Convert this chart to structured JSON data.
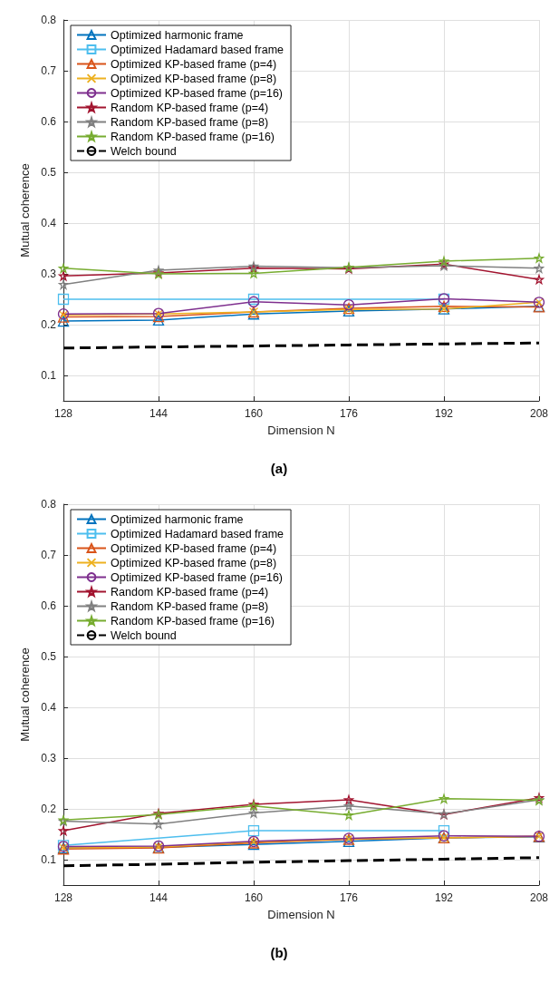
{
  "chart_data": [
    {
      "type": "line",
      "xlabel": "Dimension N",
      "ylabel": "Mutual coherence",
      "annotations": [
        "(a)"
      ],
      "x": [
        128,
        144,
        160,
        176,
        192,
        208
      ],
      "xlim": [
        128,
        208
      ],
      "xticks": [
        128,
        144,
        160,
        176,
        192,
        208
      ],
      "ylim": [
        0.05,
        0.8
      ],
      "yticks": [
        0.1,
        0.2,
        0.3,
        0.4,
        0.5,
        0.6,
        0.7,
        0.8
      ],
      "grid": true,
      "legend": "top left",
      "series": [
        {
          "name": "Optimized harmonic frame",
          "color": "#0072bd",
          "marker": "triangle",
          "values": [
            0.207,
            0.209,
            0.221,
            0.227,
            0.231,
            0.236
          ]
        },
        {
          "name": "Optimized Hadamard based frame",
          "color": "#4dbeee",
          "marker": "square",
          "x": [
            128,
            160,
            192
          ],
          "values": [
            0.25,
            0.25,
            0.25
          ]
        },
        {
          "name": "Optimized KP-based frame (p=4)",
          "color": "#d95319",
          "marker": "triangle",
          "values": [
            0.215,
            0.216,
            0.225,
            0.232,
            0.236,
            0.235
          ]
        },
        {
          "name": "Optimized KP-based frame (p=8)",
          "color": "#edb120",
          "marker": "cross",
          "values": [
            0.219,
            0.221,
            0.225,
            0.23,
            0.231,
            0.244
          ]
        },
        {
          "name": "Optimized KP-based frame (p=16)",
          "color": "#7e2f8e",
          "marker": "circle",
          "values": [
            0.221,
            0.222,
            0.245,
            0.239,
            0.251,
            0.244
          ]
        },
        {
          "name": "Random KP-based frame (p=4)",
          "color": "#a2142f",
          "marker": "star",
          "values": [
            0.296,
            0.302,
            0.311,
            0.31,
            0.319,
            0.289
          ]
        },
        {
          "name": "Random KP-based frame (p=8)",
          "color": "#808080",
          "marker": "star",
          "values": [
            0.279,
            0.307,
            0.315,
            0.312,
            0.316,
            0.311
          ]
        },
        {
          "name": "Random KP-based frame (p=16)",
          "color": "#77ac30",
          "marker": "star",
          "values": [
            0.311,
            0.3,
            0.301,
            0.313,
            0.325,
            0.331
          ]
        },
        {
          "name": "Welch bound",
          "color": "#000000",
          "marker": "none",
          "line_style": "dashed",
          "values": [
            0.154,
            0.156,
            0.158,
            0.16,
            0.162,
            0.164
          ]
        }
      ]
    },
    {
      "type": "line",
      "xlabel": "Dimension N",
      "ylabel": "Mutual coherence",
      "annotations": [
        "(b)"
      ],
      "x": [
        128,
        144,
        160,
        176,
        192,
        208
      ],
      "xlim": [
        128,
        208
      ],
      "xticks": [
        128,
        144,
        160,
        176,
        192,
        208
      ],
      "ylim": [
        0.05,
        0.8
      ],
      "yticks": [
        0.1,
        0.2,
        0.3,
        0.4,
        0.5,
        0.6,
        0.7,
        0.8
      ],
      "grid": true,
      "legend": "top left",
      "series": [
        {
          "name": "Optimized harmonic frame",
          "color": "#0072bd",
          "marker": "triangle",
          "values": [
            0.123,
            0.124,
            0.13,
            0.136,
            0.143,
            0.145
          ]
        },
        {
          "name": "Optimized Hadamard based frame",
          "color": "#4dbeee",
          "marker": "square",
          "x": [
            128,
            160,
            192
          ],
          "values": [
            0.128,
            0.157,
            0.157
          ]
        },
        {
          "name": "Optimized KP-based frame (p=4)",
          "color": "#d95319",
          "marker": "triangle",
          "values": [
            0.121,
            0.123,
            0.133,
            0.14,
            0.143,
            0.146
          ]
        },
        {
          "name": "Optimized KP-based frame (p=8)",
          "color": "#edb120",
          "marker": "cross",
          "values": [
            0.123,
            0.125,
            0.135,
            0.141,
            0.143,
            0.146
          ]
        },
        {
          "name": "Optimized KP-based frame (p=16)",
          "color": "#7e2f8e",
          "marker": "circle",
          "values": [
            0.126,
            0.127,
            0.136,
            0.142,
            0.147,
            0.146
          ]
        },
        {
          "name": "Random KP-based frame (p=4)",
          "color": "#a2142f",
          "marker": "star",
          "values": [
            0.157,
            0.191,
            0.209,
            0.218,
            0.189,
            0.222
          ]
        },
        {
          "name": "Random KP-based frame (p=8)",
          "color": "#808080",
          "marker": "star",
          "values": [
            0.176,
            0.17,
            0.192,
            0.206,
            0.19,
            0.218
          ]
        },
        {
          "name": "Random KP-based frame (p=16)",
          "color": "#77ac30",
          "marker": "star",
          "values": [
            0.178,
            0.189,
            0.206,
            0.188,
            0.22,
            0.217
          ]
        },
        {
          "name": "Welch bound",
          "color": "#000000",
          "marker": "none",
          "line_style": "dashed",
          "values": [
            0.088,
            0.091,
            0.095,
            0.098,
            0.101,
            0.104
          ]
        }
      ]
    }
  ]
}
